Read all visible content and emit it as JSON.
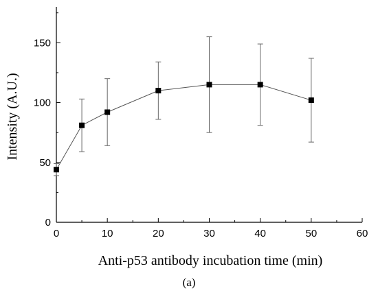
{
  "caption": "(a)",
  "chart_data": {
    "type": "line",
    "xlabel": "Anti-p53 antibody incubation time (min)",
    "ylabel": "Intensity (A.U.)",
    "xlim": [
      0,
      60
    ],
    "ylim": [
      0,
      180
    ],
    "x_ticks": [
      0,
      10,
      20,
      30,
      40,
      50,
      60
    ],
    "y_ticks": [
      0,
      50,
      100,
      150
    ],
    "grid": false,
    "marker": "square",
    "series": [
      {
        "x": [
          0,
          5,
          10,
          20,
          30,
          40,
          50
        ],
        "y": [
          44,
          81,
          92,
          110,
          115,
          115,
          102
        ],
        "error": [
          5,
          22,
          28,
          24,
          40,
          34,
          35
        ]
      }
    ],
    "colors": {
      "line": "#555555",
      "marker": "#000000",
      "errorbar": "#666666",
      "axis": "#000000"
    }
  }
}
